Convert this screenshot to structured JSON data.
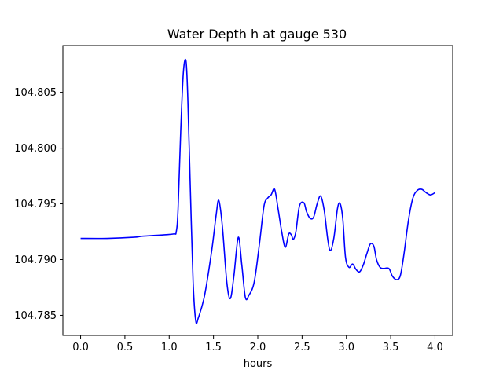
{
  "chart_data": {
    "type": "line",
    "title": "Water Depth h at gauge 530",
    "xlabel": "hours",
    "ylabel": "",
    "xlim": [
      -0.2,
      4.2
    ],
    "ylim": [
      104.7832,
      104.8092
    ],
    "grid": false,
    "legend": "none",
    "xticks": [
      0.0,
      0.5,
      1.0,
      1.5,
      2.0,
      2.5,
      3.0,
      3.5,
      4.0
    ],
    "xtick_labels": [
      "0.0",
      "0.5",
      "1.0",
      "1.5",
      "2.0",
      "2.5",
      "3.0",
      "3.5",
      "4.0"
    ],
    "yticks": [
      104.785,
      104.79,
      104.795,
      104.8,
      104.805
    ],
    "ytick_labels": [
      "104.785",
      "104.790",
      "104.795",
      "104.800",
      "104.805"
    ],
    "series": [
      {
        "color": "#0000ff",
        "x": [
          0.0,
          0.3,
          0.6,
          0.7,
          0.9,
          1.05,
          1.08,
          1.1,
          1.13,
          1.16,
          1.19,
          1.21,
          1.24,
          1.27,
          1.3,
          1.33,
          1.4,
          1.48,
          1.53,
          1.56,
          1.6,
          1.65,
          1.69,
          1.73,
          1.78,
          1.82,
          1.86,
          1.9,
          1.96,
          2.02,
          2.07,
          2.11,
          2.15,
          2.19,
          2.23,
          2.27,
          2.31,
          2.35,
          2.38,
          2.4,
          2.43,
          2.47,
          2.52,
          2.55,
          2.59,
          2.63,
          2.67,
          2.71,
          2.75,
          2.79,
          2.82,
          2.86,
          2.9,
          2.93,
          2.96,
          2.99,
          3.03,
          3.07,
          3.11,
          3.15,
          3.19,
          3.23,
          3.27,
          3.31,
          3.34,
          3.38,
          3.42,
          3.48,
          3.52,
          3.57,
          3.61,
          3.65,
          3.7,
          3.75,
          3.8,
          3.85,
          3.9,
          3.95,
          4.0
        ],
        "y": [
          104.7919,
          104.7919,
          104.792,
          104.7921,
          104.7922,
          104.7923,
          104.7925,
          104.7945,
          104.8015,
          104.8068,
          104.8078,
          104.8045,
          104.796,
          104.788,
          104.7845,
          104.7848,
          104.7868,
          104.7908,
          104.794,
          104.7953,
          104.793,
          104.788,
          104.7865,
          104.7885,
          104.792,
          104.7895,
          104.7866,
          104.7868,
          104.788,
          104.7915,
          104.7948,
          104.7955,
          104.7958,
          104.7963,
          104.7945,
          104.7925,
          104.7911,
          104.7923,
          104.7922,
          104.7918,
          104.7925,
          104.7948,
          104.7951,
          104.7943,
          104.7937,
          104.7938,
          104.795,
          104.7957,
          104.7944,
          104.7918,
          104.7908,
          104.792,
          104.7946,
          104.795,
          104.7936,
          104.7902,
          104.7893,
          104.7896,
          104.7891,
          104.7889,
          104.7895,
          104.7905,
          104.7914,
          104.7912,
          104.79,
          104.7893,
          104.7892,
          104.7892,
          104.7885,
          104.7882,
          104.7886,
          104.7905,
          104.7935,
          104.7955,
          104.7962,
          104.7963,
          104.796,
          104.7958,
          104.796
        ]
      }
    ]
  }
}
